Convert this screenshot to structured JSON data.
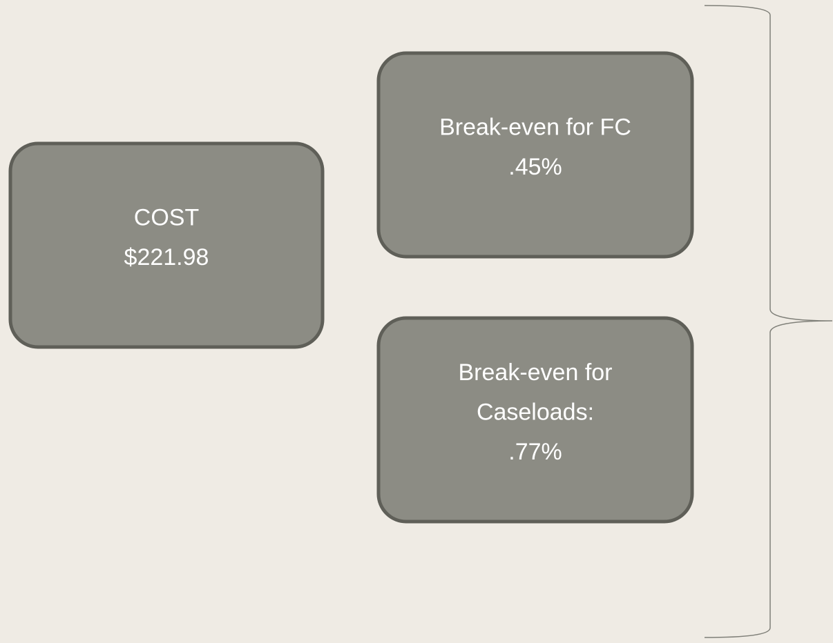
{
  "nodes": [
    {
      "lines": [
        "COST",
        "$221.98"
      ]
    },
    {
      "lines": [
        "Break-even for FC",
        ".45%"
      ]
    },
    {
      "lines": [
        "Break-even for",
        "Caseloads:",
        ".77%"
      ]
    }
  ]
}
